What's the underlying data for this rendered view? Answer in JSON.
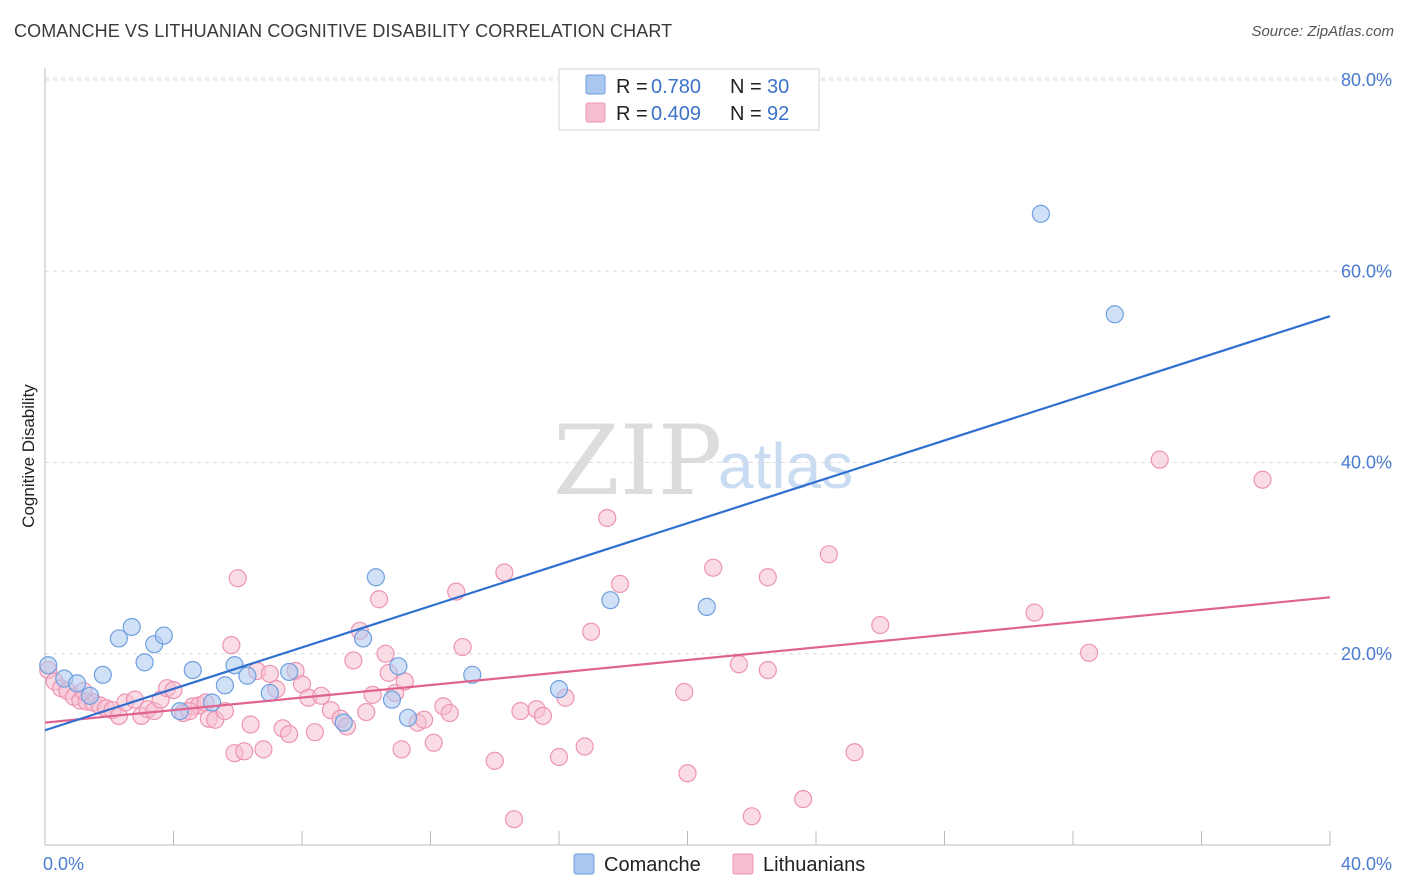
{
  "title": "COMANCHE VS LITHUANIAN COGNITIVE DISABILITY CORRELATION CHART",
  "source": "Source: ZipAtlas.com",
  "watermark": {
    "zip": "ZIP",
    "atlas": "atlas"
  },
  "colors": {
    "comanche_fill": "#a9c8f0",
    "comanche_stroke": "#6f9fdf",
    "comanche_line": "#2f6fd0",
    "lithuanians_fill": "#f6bfd0",
    "lithuanians_stroke": "#ee94b3",
    "lithuanians_line": "#e0638f",
    "tick_label": "#4a7bd0",
    "grid": "#dddddd"
  },
  "legend_top": {
    "rows": [
      {
        "series": "Comanche",
        "r_label": "R =",
        "r_value": "0.780",
        "n_label": "N =",
        "n_value": "30"
      },
      {
        "series": "Lithuanians",
        "r_label": "R =",
        "r_value": "0.409",
        "n_label": "N =",
        "n_value": "92"
      }
    ]
  },
  "legend_bottom": [
    "Comanche",
    "Lithuanians"
  ],
  "chart_data": {
    "type": "scatter",
    "title": "COMANCHE VS LITHUANIAN COGNITIVE DISABILITY CORRELATION CHART",
    "xlabel": "",
    "ylabel": "Cognitive Disability",
    "xlim": [
      0,
      40
    ],
    "ylim": [
      0,
      80
    ],
    "x_tick_labels": [
      {
        "value": 0,
        "label": "0.0%"
      },
      {
        "value": 40,
        "label": "40.0%"
      }
    ],
    "y_tick_labels": [
      {
        "value": 20,
        "label": "20.0%"
      },
      {
        "value": 40,
        "label": "40.0%"
      },
      {
        "value": 60,
        "label": "60.0%"
      },
      {
        "value": 80,
        "label": "80.0%"
      }
    ],
    "grid": true,
    "legend": "top-center",
    "series": [
      {
        "name": "Comanche",
        "R": 0.78,
        "N": 30,
        "trend": {
          "x": [
            0,
            40
          ],
          "y": [
            12.0,
            55.3
          ]
        },
        "points": [
          [
            0.1,
            18.8
          ],
          [
            0.6,
            17.4
          ],
          [
            1.0,
            16.9
          ],
          [
            1.4,
            15.6
          ],
          [
            1.8,
            17.8
          ],
          [
            2.3,
            21.6
          ],
          [
            2.7,
            22.8
          ],
          [
            3.1,
            19.1
          ],
          [
            3.4,
            21.0
          ],
          [
            3.7,
            21.9
          ],
          [
            4.2,
            14.0
          ],
          [
            4.6,
            18.3
          ],
          [
            5.2,
            14.9
          ],
          [
            5.6,
            16.7
          ],
          [
            5.9,
            18.8
          ],
          [
            6.3,
            17.7
          ],
          [
            7.0,
            15.9
          ],
          [
            7.6,
            18.1
          ],
          [
            9.3,
            12.8
          ],
          [
            9.9,
            21.6
          ],
          [
            10.3,
            28.0
          ],
          [
            10.8,
            15.2
          ],
          [
            11.0,
            18.7
          ],
          [
            11.3,
            13.3
          ],
          [
            13.3,
            17.8
          ],
          [
            16.0,
            16.3
          ],
          [
            17.6,
            25.6
          ],
          [
            20.6,
            24.9
          ],
          [
            31.0,
            66.0
          ],
          [
            33.3,
            55.5
          ]
        ]
      },
      {
        "name": "Lithuanians",
        "R": 0.409,
        "N": 92,
        "trend": {
          "x": [
            0,
            40
          ],
          "y": [
            12.8,
            25.9
          ]
        },
        "points": [
          [
            0.1,
            18.3
          ],
          [
            0.3,
            17.1
          ],
          [
            0.5,
            16.4
          ],
          [
            0.7,
            16.1
          ],
          [
            0.9,
            15.5
          ],
          [
            1.1,
            15.1
          ],
          [
            1.3,
            15.0
          ],
          [
            1.5,
            14.9
          ],
          [
            1.7,
            14.6
          ],
          [
            1.9,
            14.3
          ],
          [
            2.1,
            14.1
          ],
          [
            2.3,
            13.5
          ],
          [
            2.5,
            14.9
          ],
          [
            2.8,
            15.2
          ],
          [
            3.0,
            13.5
          ],
          [
            3.2,
            14.2
          ],
          [
            3.4,
            14.0
          ],
          [
            3.6,
            15.2
          ],
          [
            3.8,
            16.4
          ],
          [
            4.0,
            16.2
          ],
          [
            4.3,
            13.8
          ],
          [
            4.6,
            14.5
          ],
          [
            4.8,
            14.6
          ],
          [
            5.0,
            14.9
          ],
          [
            5.1,
            13.2
          ],
          [
            5.3,
            13.1
          ],
          [
            5.6,
            14.0
          ],
          [
            5.8,
            20.9
          ],
          [
            5.9,
            9.6
          ],
          [
            6.0,
            27.9
          ],
          [
            6.2,
            9.8
          ],
          [
            6.4,
            12.6
          ],
          [
            6.6,
            18.2
          ],
          [
            6.8,
            10.0
          ],
          [
            7.0,
            17.9
          ],
          [
            7.2,
            16.3
          ],
          [
            7.4,
            12.2
          ],
          [
            7.6,
            11.6
          ],
          [
            7.8,
            18.2
          ],
          [
            8.0,
            16.8
          ],
          [
            8.2,
            15.4
          ],
          [
            8.4,
            11.8
          ],
          [
            8.6,
            15.6
          ],
          [
            8.9,
            14.1
          ],
          [
            9.2,
            13.2
          ],
          [
            9.4,
            12.4
          ],
          [
            9.6,
            19.3
          ],
          [
            9.8,
            22.4
          ],
          [
            10.0,
            13.9
          ],
          [
            10.2,
            15.7
          ],
          [
            10.4,
            25.7
          ],
          [
            10.6,
            20.0
          ],
          [
            10.7,
            18.0
          ],
          [
            10.9,
            15.9
          ],
          [
            11.1,
            10.0
          ],
          [
            11.2,
            17.1
          ],
          [
            11.6,
            12.8
          ],
          [
            11.8,
            13.1
          ],
          [
            12.1,
            10.7
          ],
          [
            12.4,
            14.5
          ],
          [
            12.6,
            13.8
          ],
          [
            12.8,
            26.5
          ],
          [
            13.0,
            20.7
          ],
          [
            14.0,
            8.8
          ],
          [
            14.3,
            28.5
          ],
          [
            14.6,
            2.7
          ],
          [
            14.8,
            14.0
          ],
          [
            15.3,
            14.2
          ],
          [
            15.5,
            13.5
          ],
          [
            16.0,
            9.2
          ],
          [
            16.2,
            15.4
          ],
          [
            16.8,
            10.3
          ],
          [
            17.0,
            22.3
          ],
          [
            17.5,
            34.2
          ],
          [
            17.9,
            27.3
          ],
          [
            19.9,
            16.0
          ],
          [
            20.0,
            7.5
          ],
          [
            20.8,
            29.0
          ],
          [
            21.6,
            18.9
          ],
          [
            22.0,
            3.0
          ],
          [
            22.5,
            28.0
          ],
          [
            22.5,
            18.3
          ],
          [
            23.6,
            4.8
          ],
          [
            24.4,
            30.4
          ],
          [
            25.2,
            9.7
          ],
          [
            26.0,
            23.0
          ],
          [
            30.8,
            24.3
          ],
          [
            32.5,
            20.1
          ],
          [
            34.7,
            40.3
          ],
          [
            37.9,
            38.2
          ],
          [
            1.2,
            16.1
          ],
          [
            4.5,
            14.0
          ]
        ]
      }
    ]
  }
}
